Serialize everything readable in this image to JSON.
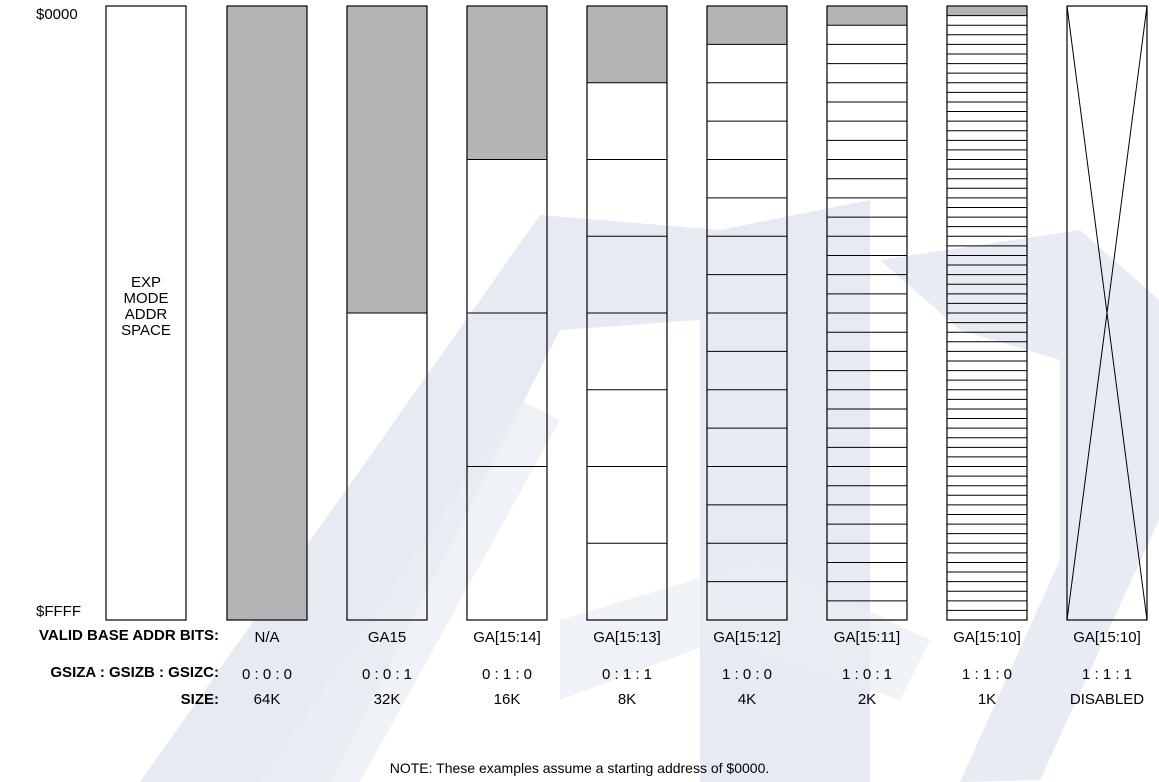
{
  "address_labels": {
    "start": "$0000",
    "end": "$FFFF"
  },
  "exp_space": {
    "lines": [
      "EXP",
      "MODE",
      "ADDR",
      "SPACE"
    ]
  },
  "row_labels": {
    "valid_base": "VALID BASE ADDR BITS:",
    "gsiz": "GSIZA : GSIZB : GSIZC:",
    "size": "SIZE:"
  },
  "columns": [
    {
      "bits": "N/A",
      "gsiz": "0 : 0 : 0",
      "size": "64K",
      "divisions": 1
    },
    {
      "bits": "GA15",
      "gsiz": "0 : 0 : 1",
      "size": "32K",
      "divisions": 2
    },
    {
      "bits": "GA[15:14]",
      "gsiz": "0 : 1 : 0",
      "size": "16K",
      "divisions": 4
    },
    {
      "bits": "GA[15:13]",
      "gsiz": "0 : 1 : 1",
      "size": "8K",
      "divisions": 8
    },
    {
      "bits": "GA[15:12]",
      "gsiz": "1 : 0 : 0",
      "size": "4K",
      "divisions": 16
    },
    {
      "bits": "GA[15:11]",
      "gsiz": "1 : 0 : 1",
      "size": "2K",
      "divisions": 32
    },
    {
      "bits": "GA[15:10]",
      "gsiz": "1 : 1 : 0",
      "size": "1K",
      "divisions": 64
    },
    {
      "bits": "GA[15:10]",
      "gsiz": "1 : 1 : 1",
      "size": "DISABLED",
      "divisions": 0,
      "disabled": true
    }
  ],
  "note": "NOTE:  These examples assume a starting address of $0000.",
  "colors": {
    "shaded": "#b4b4b4",
    "watermark": "#dde3ee",
    "line": "#000000"
  }
}
